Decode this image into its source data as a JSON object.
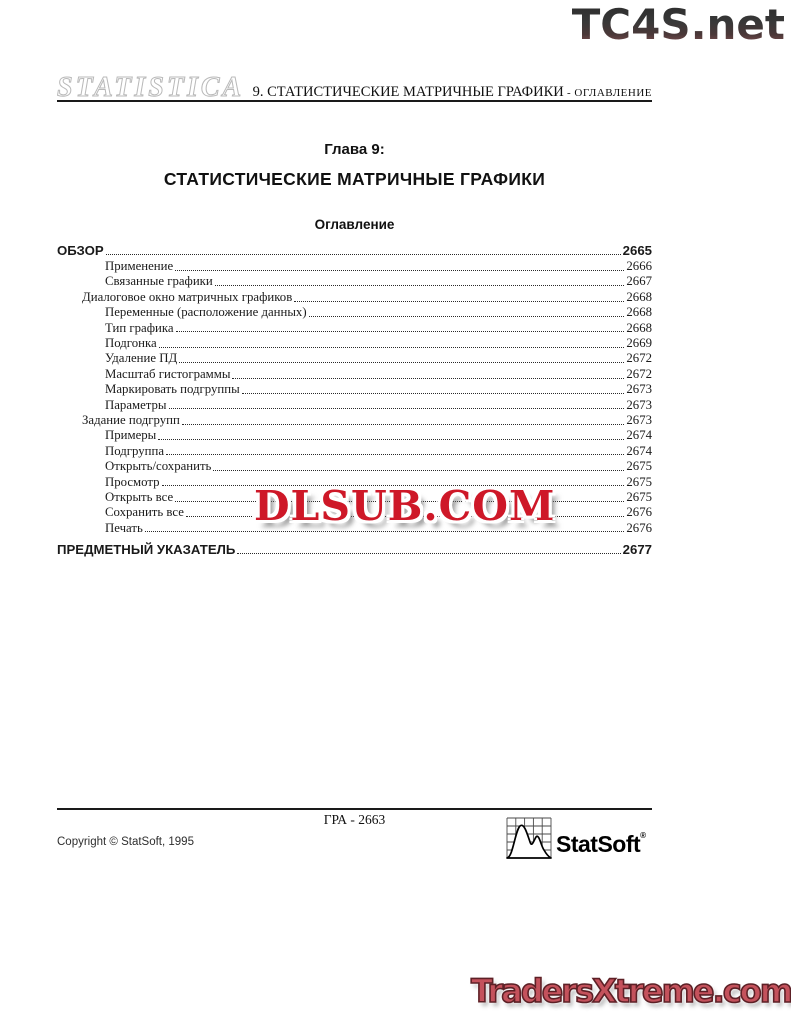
{
  "watermarks": {
    "top": "TC4S.net",
    "middle": "DLSUB.COM",
    "bottom": "TradersXtreme.com"
  },
  "header": {
    "logo": "STATISTICA",
    "chapter": "9.  СТАТИСТИЧЕСКИЕ МАТРИЧНЫЕ ГРАФИКИ",
    "suffix": " - ОГЛАВЛЕНИЕ"
  },
  "title": {
    "chapter_line": "Глава 9:",
    "main": "СТАТИСТИЧЕСКИЕ МАТРИЧНЫЕ ГРАФИКИ",
    "subtitle": "Оглавление"
  },
  "toc": {
    "entries": [
      {
        "label": "ОБЗОР",
        "page": "2665",
        "level": 0,
        "bold": true
      },
      {
        "label": "Применение",
        "page": "2666",
        "level": 2,
        "bold": false
      },
      {
        "label": "Связанные графики",
        "page": "2667",
        "level": 2,
        "bold": false
      },
      {
        "label": "Диалоговое окно матричных графиков",
        "page": "2668",
        "level": 1,
        "bold": false
      },
      {
        "label": "Переменные (расположение данных)",
        "page": "2668",
        "level": 2,
        "bold": false
      },
      {
        "label": "Тип графика",
        "page": "2668",
        "level": 2,
        "bold": false
      },
      {
        "label": "Подгонка",
        "page": "2669",
        "level": 2,
        "bold": false
      },
      {
        "label": "Удаление ПД",
        "page": "2672",
        "level": 2,
        "bold": false
      },
      {
        "label": "Масштаб гистограммы",
        "page": "2672",
        "level": 2,
        "bold": false
      },
      {
        "label": "Маркировать подгруппы",
        "page": "2673",
        "level": 2,
        "bold": false
      },
      {
        "label": "Параметры",
        "page": "2673",
        "level": 2,
        "bold": false
      },
      {
        "label": "Задание подгрупп",
        "page": "2673",
        "level": 1,
        "bold": false
      },
      {
        "label": "Примеры",
        "page": "2674",
        "level": 2,
        "bold": false
      },
      {
        "label": "Подгруппа",
        "page": "2674",
        "level": 2,
        "bold": false
      },
      {
        "label": "Открыть/сохранить",
        "page": "2675",
        "level": 2,
        "bold": false
      },
      {
        "label": "Просмотр",
        "page": "2675",
        "level": 2,
        "bold": false
      },
      {
        "label": "Открыть все",
        "page": "2675",
        "level": 2,
        "bold": false
      },
      {
        "label": "Сохранить все",
        "page": "2676",
        "level": 2,
        "bold": false
      },
      {
        "label": "Печать",
        "page": "2676",
        "level": 2,
        "bold": false
      },
      {
        "label": "ПРЕДМЕТНЫЙ УКАЗАТЕЛЬ",
        "page": "2677",
        "level": 0,
        "bold": true
      }
    ]
  },
  "footer": {
    "page_label": "ГРА - 2663",
    "copyright": "Copyright © StatSoft, 1995",
    "brand": "StatSoft",
    "registered": "®"
  },
  "colors": {
    "dlsub_red": "#ce1828",
    "traders_red": "#c4525c",
    "tc4s_dark": "#2b2b2b",
    "tc4s_red": "#96585a",
    "rule_black": "#1a1a1a",
    "logo_outline_gray": "#b9b9b9"
  }
}
